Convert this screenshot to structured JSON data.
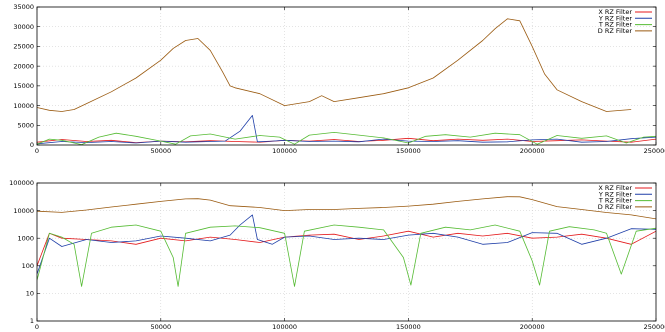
{
  "chart_data": [
    {
      "type": "line",
      "title": "",
      "xlabel": "",
      "ylabel": "",
      "xlim": [
        0,
        250000
      ],
      "ylim": [
        0,
        35000
      ],
      "x_ticks": [
        0,
        50000,
        100000,
        150000,
        200000,
        250000
      ],
      "y_ticks": [
        0,
        5000,
        10000,
        15000,
        20000,
        25000,
        30000,
        35000
      ],
      "grid": true,
      "legend": "top-right",
      "series": [
        {
          "name": "X RZ Filter",
          "color": "#e41a1c",
          "x": [
            0,
            10000,
            20000,
            30000,
            40000,
            50000,
            60000,
            70000,
            80000,
            90000,
            100000,
            110000,
            120000,
            130000,
            140000,
            150000,
            160000,
            170000,
            180000,
            190000,
            200000,
            210000,
            220000,
            230000,
            240000,
            250000
          ],
          "y": [
            700,
            1400,
            900,
            1200,
            600,
            1000,
            800,
            1100,
            900,
            700,
            1200,
            1000,
            1400,
            900,
            1200,
            1700,
            1100,
            1500,
            1200,
            1500,
            900,
            1100,
            1300,
            1000,
            700,
            1500
          ]
        },
        {
          "name": "Y RZ Filter",
          "color": "#1f3fa8",
          "x": [
            0,
            10000,
            20000,
            30000,
            40000,
            50000,
            60000,
            70000,
            76000,
            82000,
            87000,
            89000,
            95000,
            100000,
            110000,
            120000,
            130000,
            140000,
            150000,
            160000,
            170000,
            180000,
            190000,
            200000,
            210000,
            220000,
            230000,
            240000,
            250000
          ],
          "y": [
            300,
            900,
            600,
            900,
            500,
            1000,
            700,
            900,
            1000,
            3500,
            7500,
            800,
            1000,
            1200,
            900,
            1000,
            800,
            1500,
            1000,
            900,
            1100,
            700,
            800,
            1300,
            1500,
            700,
            900,
            1600,
            2000
          ]
        },
        {
          "name": "T RZ Filter",
          "color": "#55bb33",
          "x": [
            0,
            5000,
            10000,
            18000,
            25000,
            32000,
            40000,
            50000,
            56000,
            62000,
            70000,
            80000,
            90000,
            98000,
            104000,
            110000,
            120000,
            130000,
            140000,
            150000,
            157000,
            165000,
            175000,
            185000,
            195000,
            202000,
            210000,
            220000,
            230000,
            238000,
            245000,
            250000
          ],
          "y": [
            200,
            1500,
            1200,
            100,
            2000,
            3000,
            2200,
            1000,
            200,
            2300,
            2800,
            1500,
            2400,
            2000,
            200,
            2500,
            3200,
            2500,
            1800,
            500,
            2200,
            2600,
            2000,
            3000,
            2600,
            200,
            2400,
            1700,
            2300,
            500,
            2000,
            2200
          ]
        },
        {
          "name": "D RZ Filter",
          "color": "#9a5a10",
          "x": [
            0,
            5000,
            10000,
            15000,
            20000,
            30000,
            40000,
            50000,
            55000,
            60000,
            65000,
            70000,
            75000,
            78000,
            80000,
            90000,
            100000,
            110000,
            115000,
            120000,
            130000,
            140000,
            150000,
            160000,
            170000,
            180000,
            185000,
            190000,
            195000,
            200000,
            205000,
            210000,
            220000,
            230000,
            240000
          ],
          "y": [
            9500,
            8800,
            8500,
            9000,
            10500,
            13500,
            17000,
            21500,
            24500,
            26500,
            27000,
            24000,
            18500,
            15000,
            14500,
            13000,
            10000,
            11000,
            12500,
            11000,
            12000,
            13000,
            14500,
            17000,
            21500,
            26500,
            29500,
            32000,
            31500,
            25000,
            18000,
            14000,
            11000,
            8500,
            9000
          ]
        }
      ]
    },
    {
      "type": "line",
      "title": "",
      "xlabel": "",
      "ylabel": "",
      "xlim": [
        0,
        250000
      ],
      "ylim": [
        1,
        100000
      ],
      "yscale": "log",
      "x_ticks": [
        0,
        50000,
        100000,
        150000,
        200000,
        250000
      ],
      "y_ticks": [
        1,
        10,
        100,
        1000,
        10000,
        100000
      ],
      "grid": true,
      "legend": "top-right",
      "series": [
        {
          "name": "X RZ Filter",
          "color": "#e41a1c",
          "x": [
            0,
            5000,
            10000,
            20000,
            30000,
            40000,
            50000,
            60000,
            70000,
            80000,
            90000,
            100000,
            110000,
            120000,
            130000,
            140000,
            150000,
            160000,
            170000,
            180000,
            190000,
            200000,
            210000,
            220000,
            230000,
            240000,
            250000
          ],
          "y": [
            100,
            1500,
            1000,
            900,
            800,
            600,
            1000,
            800,
            1100,
            900,
            700,
            1100,
            1300,
            1400,
            900,
            1200,
            1800,
            1100,
            1500,
            1200,
            1500,
            1000,
            1100,
            1400,
            1000,
            600,
            1800
          ]
        },
        {
          "name": "Y RZ Filter",
          "color": "#1f3fa8",
          "x": [
            0,
            5000,
            10000,
            20000,
            30000,
            40000,
            50000,
            60000,
            70000,
            78000,
            82000,
            87000,
            89000,
            95000,
            100000,
            110000,
            120000,
            130000,
            140000,
            150000,
            160000,
            170000,
            180000,
            190000,
            200000,
            210000,
            220000,
            230000,
            240000,
            250000
          ],
          "y": [
            50,
            1000,
            500,
            900,
            700,
            800,
            1200,
            1000,
            800,
            1300,
            3000,
            7000,
            900,
            600,
            1100,
            1200,
            900,
            1000,
            900,
            1300,
            1500,
            1100,
            600,
            700,
            1600,
            1500,
            600,
            1000,
            2200,
            2100
          ]
        },
        {
          "name": "T RZ Filter",
          "color": "#55bb33",
          "x": [
            0,
            5000,
            10000,
            15000,
            18000,
            22000,
            30000,
            40000,
            50000,
            55000,
            57000,
            60000,
            70000,
            80000,
            90000,
            100000,
            104000,
            108000,
            120000,
            130000,
            140000,
            148000,
            151000,
            155000,
            165000,
            175000,
            185000,
            195000,
            200000,
            203000,
            207000,
            215000,
            225000,
            230000,
            236000,
            242000,
            250000
          ],
          "y": [
            30,
            1500,
            1100,
            600,
            18,
            1500,
            2500,
            3000,
            1800,
            200,
            18,
            1500,
            2500,
            2800,
            2400,
            1500,
            18,
            1800,
            3000,
            2500,
            2000,
            200,
            20,
            1500,
            2500,
            2000,
            3000,
            1800,
            150,
            20,
            1800,
            2600,
            2000,
            1500,
            50,
            1800,
            2300
          ]
        },
        {
          "name": "D RZ Filter",
          "color": "#9a5a10",
          "x": [
            0,
            10000,
            20000,
            30000,
            40000,
            50000,
            60000,
            65000,
            70000,
            78000,
            90000,
            100000,
            110000,
            120000,
            130000,
            140000,
            150000,
            160000,
            170000,
            180000,
            190000,
            195000,
            200000,
            210000,
            220000,
            230000,
            240000,
            250000
          ],
          "y": [
            9500,
            8600,
            10500,
            13500,
            17000,
            21500,
            26500,
            27000,
            24000,
            15000,
            13000,
            10000,
            11000,
            11000,
            12000,
            13000,
            14500,
            17000,
            21500,
            26500,
            32000,
            31500,
            25000,
            14000,
            11000,
            8500,
            7000,
            5000
          ]
        }
      ]
    }
  ]
}
